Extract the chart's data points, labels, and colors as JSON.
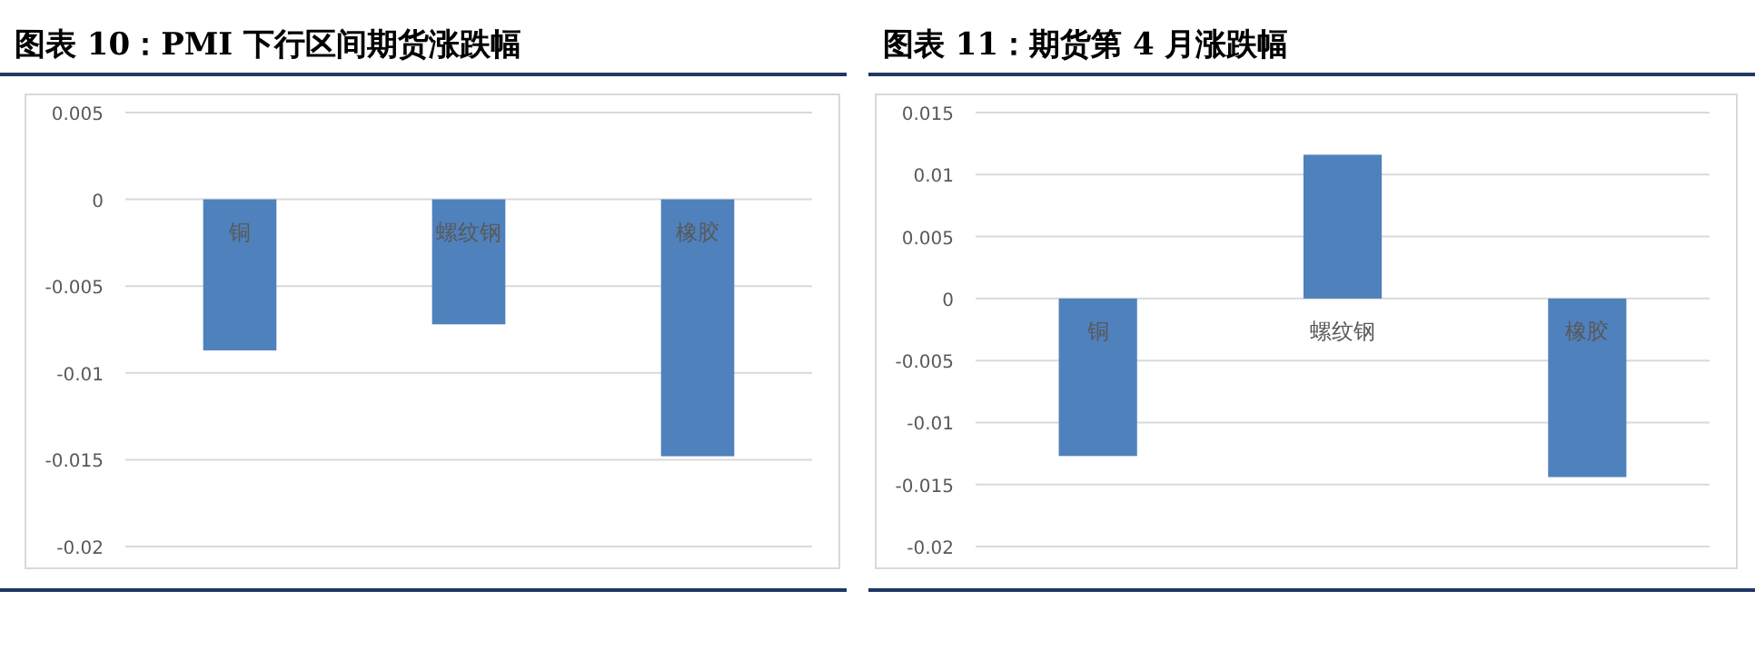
{
  "chart_data": [
    {
      "type": "bar",
      "title": "图表 10：PMI 下行区间期货涨跌幅",
      "categories": [
        "铜",
        "螺纹钢",
        "橡胶"
      ],
      "series": [
        {
          "color": "#4f81bd",
          "values": [
            -0.0087,
            -0.0072,
            -0.0148
          ]
        }
      ],
      "ylim": [
        -0.02,
        0.005
      ],
      "yticks": [
        -0.02,
        -0.015,
        -0.01,
        -0.005,
        0,
        0.005
      ],
      "grid": "y"
    },
    {
      "type": "bar",
      "title": "图表 11：期货第 4 月涨跌幅",
      "categories": [
        "铜",
        "螺纹钢",
        "橡胶"
      ],
      "series": [
        {
          "color": "#4f81bd",
          "values": [
            -0.0127,
            0.0116,
            -0.0144
          ]
        }
      ],
      "ylim": [
        -0.02,
        0.015
      ],
      "yticks": [
        -0.02,
        -0.015,
        -0.01,
        -0.005,
        0,
        0.005,
        0.01,
        0.015
      ],
      "grid": "y"
    }
  ]
}
